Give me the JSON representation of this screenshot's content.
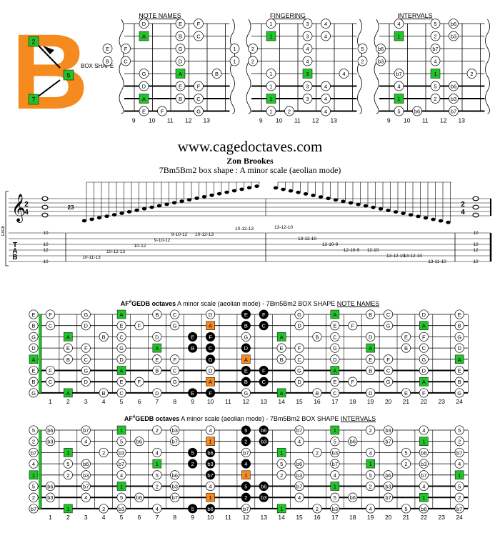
{
  "site": "www.cagedoctaves.com",
  "author": "Zon Brookes",
  "shape_title": "7Bm5Bm2 box shape : A minor scale (aeolian mode)",
  "logo_letter": "B",
  "logo_numbers": [
    "2",
    "5",
    "7"
  ],
  "box_label": "BOX SHAPE",
  "panel_titles": [
    "NOTE NAMES",
    "FINGERING",
    "INTERVALS"
  ],
  "panel_frets": [
    "9",
    "10",
    "11",
    "12",
    "13"
  ],
  "string_names": [
    "E",
    "B",
    "G",
    "D",
    "A",
    "F",
    "C",
    "G"
  ],
  "board_titles": {
    "notes_prefix": "AF",
    "notes_sup": "#",
    "notes_bold": "GEDB octaves",
    "notes_rest": " A minor scale (aeolian mode) - 7Bm5Bm2 BOX SHAPE ",
    "notes_u": "NOTE NAMES",
    "int_prefix": "AF",
    "int_sup": "#",
    "int_bold": "GEDB octaves",
    "int_rest": " A minor scale (aeolian mode) - 7Bm5Bm2 BOX SHAPE ",
    "int_u": "INTERVALS"
  },
  "score": {
    "time_sig_top": "2",
    "time_sig_bottom": "4",
    "tuplet": "23",
    "tuning": "EAGB",
    "tab_letters": [
      "T",
      "A",
      "B"
    ],
    "tab_text_up": [
      "10-11-13",
      "10-12-13",
      "10-12",
      "9-10-12",
      "9-10-12",
      "10-12-13",
      "10-12-13"
    ],
    "tab_text_down": [
      "13-12-10",
      "13-12-10",
      "12-10-9",
      "12-10-9",
      "12-10",
      "13-12-10",
      "13-12-10",
      "13-11-10"
    ]
  },
  "fret_numbers": [
    "1",
    "2",
    "3",
    "4",
    "5",
    "6",
    "7",
    "8",
    "9",
    "10",
    "11",
    "12",
    "13",
    "14",
    "15",
    "16",
    "17",
    "18",
    "19",
    "20",
    "21",
    "22",
    "23",
    "24"
  ],
  "colors": {
    "green": "#22c22a",
    "orange": "#f58a1f",
    "black": "#000000"
  }
}
